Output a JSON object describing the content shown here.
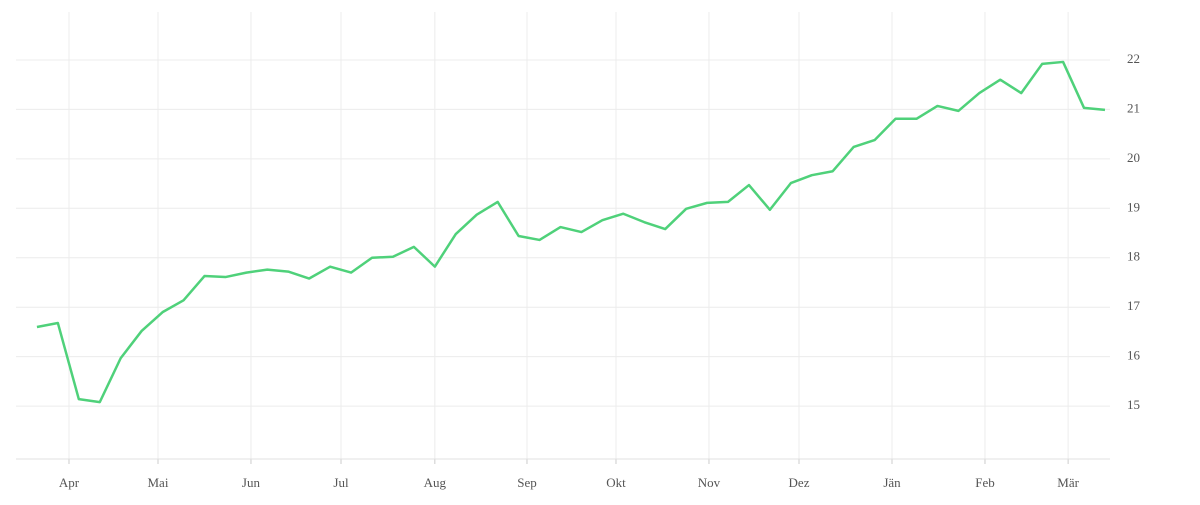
{
  "chart_data": {
    "type": "line",
    "series": [
      {
        "color": "#4fd17a",
        "values": [
          16.6,
          16.68,
          15.14,
          15.08,
          15.97,
          16.52,
          16.9,
          17.14,
          17.63,
          17.61,
          17.7,
          17.76,
          17.72,
          17.58,
          17.82,
          17.7,
          18.0,
          18.02,
          18.22,
          17.82,
          18.48,
          18.87,
          19.13,
          18.44,
          18.36,
          18.62,
          18.52,
          18.76,
          18.89,
          18.72,
          18.58,
          18.99,
          19.11,
          19.13,
          19.47,
          18.97,
          19.51,
          19.67,
          19.75,
          20.24,
          20.38,
          20.81,
          20.81,
          21.07,
          20.97,
          21.33,
          21.6,
          21.33,
          21.92,
          21.96,
          21.03,
          20.99
        ]
      }
    ],
    "xlim": [
      -1.0,
      51.24
    ],
    "xticks": [
      {
        "value": 1.53,
        "label": "Apr"
      },
      {
        "value": 5.78,
        "label": "Mai"
      },
      {
        "value": 10.22,
        "label": "Jun"
      },
      {
        "value": 14.52,
        "label": "Jul"
      },
      {
        "value": 19.0,
        "label": "Aug"
      },
      {
        "value": 23.4,
        "label": "Sep"
      },
      {
        "value": 27.65,
        "label": "Okt"
      },
      {
        "value": 32.09,
        "label": "Nov"
      },
      {
        "value": 36.39,
        "label": "Dez"
      },
      {
        "value": 40.83,
        "label": "Jän"
      },
      {
        "value": 45.27,
        "label": "Feb"
      },
      {
        "value": 49.24,
        "label": "Mär"
      }
    ],
    "ylim": [
      13.93,
      22.97
    ],
    "yticks": [
      15,
      16,
      17,
      18,
      19,
      20,
      21,
      22
    ],
    "grid": true
  }
}
